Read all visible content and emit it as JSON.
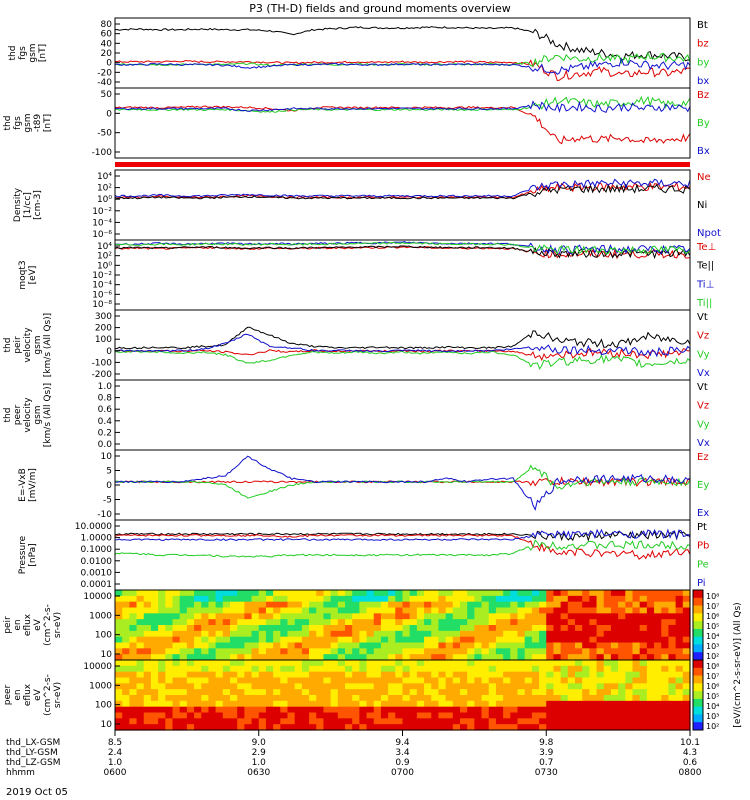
{
  "title": "P3 (TH-D) fields and ground moments overview",
  "date": "2019 Oct 05",
  "colors": {
    "black": "#000000",
    "red": "#dd0000",
    "green": "#22cc22",
    "blue": "#1010cc"
  },
  "chart_data": [
    {
      "type": "line",
      "ylabel": [
        "thd",
        "fgs",
        "gsm",
        "[nT]"
      ],
      "ticks": [
        "80",
        "60",
        "40",
        "20",
        "0",
        "-20",
        "-40"
      ],
      "ylim": [
        -40,
        80
      ],
      "series": [
        {
          "name": "Bt",
          "color": "black",
          "values": [
            60,
            61,
            60,
            60,
            61,
            60,
            60,
            58,
            52,
            60,
            62,
            64,
            63,
            63,
            64,
            64,
            63,
            62,
            63,
            55,
            35,
            25,
            20,
            15,
            18,
            15,
            12
          ]
        },
        {
          "name": "bz",
          "color": "red",
          "values": [
            5,
            5,
            5,
            6,
            5,
            5,
            5,
            4,
            3,
            4,
            4,
            5,
            4,
            5,
            4,
            5,
            5,
            4,
            4,
            0,
            -20,
            -15,
            -10,
            -18,
            -12,
            -15,
            -10
          ]
        },
        {
          "name": "by",
          "color": "green",
          "values": [
            0,
            1,
            0,
            0,
            1,
            0,
            2,
            -1,
            0,
            1,
            0,
            1,
            0,
            1,
            0,
            1,
            0,
            1,
            0,
            5,
            15,
            10,
            12,
            8,
            15,
            12,
            10
          ]
        },
        {
          "name": "bx",
          "color": "blue",
          "values": [
            0,
            0,
            1,
            0,
            0,
            -1,
            -5,
            -3,
            0,
            0,
            1,
            0,
            0,
            1,
            0,
            0,
            1,
            0,
            0,
            -5,
            -10,
            -5,
            0,
            5,
            0,
            -2,
            0
          ]
        }
      ]
    },
    {
      "type": "line",
      "ylabel": [
        "thd",
        "fgs",
        "gsm",
        "-t89",
        "[nT]"
      ],
      "ticks": [
        "50",
        "0",
        "-50",
        "-100"
      ],
      "ylim": [
        -120,
        50
      ],
      "series": [
        {
          "name": "Bz",
          "color": "red",
          "values": [
            2,
            3,
            2,
            3,
            5,
            4,
            3,
            0,
            -5,
            2,
            3,
            2,
            3,
            2,
            3,
            2,
            3,
            2,
            3,
            -20,
            -80,
            -70,
            -75,
            -70,
            -80,
            -75,
            -70
          ]
        },
        {
          "name": "By",
          "color": "green",
          "values": [
            -3,
            -2,
            -3,
            -2,
            -3,
            -2,
            -5,
            -8,
            -3,
            -2,
            -3,
            -2,
            -3,
            -2,
            -3,
            -2,
            -3,
            -2,
            -3,
            5,
            20,
            15,
            10,
            15,
            20,
            10,
            15
          ]
        },
        {
          "name": "Bx",
          "color": "blue",
          "values": [
            0,
            0,
            0,
            0,
            0,
            0,
            -5,
            -3,
            0,
            0,
            0,
            0,
            0,
            0,
            0,
            0,
            0,
            0,
            0,
            10,
            0,
            5,
            0,
            5,
            0,
            5,
            0
          ]
        }
      ]
    },
    {
      "type": "line",
      "ylabel": [
        "Density",
        "[1/cc]",
        "[cm-3]"
      ],
      "ticks": [
        "10⁴",
        "10²",
        "10⁰",
        "10⁻²",
        "10⁻⁴",
        "10⁻⁶"
      ],
      "ylim": [
        -6,
        4
      ],
      "series": [
        {
          "name": "Ne",
          "color": "red",
          "values": [
            0.1,
            0.1,
            0.2,
            0.1,
            0.1,
            0.2,
            0.3,
            0.2,
            0.1,
            0.1,
            0.1,
            0.1,
            0.1,
            0.1,
            0.1,
            0.1,
            0.1,
            0.1,
            0.1,
            1,
            1.5,
            1.5,
            1.6,
            1.6,
            1.6,
            1.6,
            1.6
          ]
        },
        {
          "name": "Ni",
          "color": "black",
          "values": [
            0,
            0,
            0.1,
            0,
            0,
            0.1,
            0.2,
            0.1,
            0,
            0,
            0,
            0,
            0,
            0,
            0,
            0,
            0,
            0,
            0,
            0.8,
            1.2,
            1.3,
            1.3,
            1.3,
            1.3,
            1.3,
            1.3
          ]
        },
        {
          "name": "Npot",
          "color": "blue",
          "values": [
            0.3,
            0.3,
            0.4,
            0.3,
            0.3,
            0.4,
            0.5,
            0.4,
            0.3,
            0.3,
            0.3,
            0.3,
            0.3,
            0.3,
            0.3,
            0.3,
            0.3,
            0.3,
            0.3,
            1.5,
            2,
            2,
            2.1,
            2.1,
            2.1,
            2.1,
            2.1
          ]
        }
      ]
    },
    {
      "type": "line",
      "ylabel": [
        "moqt3",
        "[eV]"
      ],
      "ticks": [
        "10⁴",
        "10²",
        "10⁰",
        "10⁻²",
        "10⁻⁴",
        "10⁻⁶",
        "10⁻⁸"
      ],
      "ylim": [
        -8,
        4
      ],
      "series": [
        {
          "name": "Te⊥",
          "color": "red",
          "values": [
            2.5,
            2.6,
            2.5,
            2.6,
            2.7,
            2.6,
            2.5,
            2.6,
            2.5,
            2.6,
            2.6,
            2.7,
            2.7,
            2.8,
            2.7,
            2.6,
            2.6,
            2.6,
            2.5,
            1.8,
            1.6,
            1.6,
            1.6,
            1.6,
            1.6,
            1.6,
            1.6
          ]
        },
        {
          "name": "Te||",
          "color": "black",
          "values": [
            2.6,
            2.7,
            2.6,
            2.7,
            2.8,
            2.7,
            2.6,
            2.7,
            2.6,
            2.7,
            2.7,
            2.8,
            2.8,
            2.9,
            2.8,
            2.7,
            2.7,
            2.7,
            2.6,
            1.9,
            1.7,
            1.7,
            1.7,
            1.7,
            1.7,
            1.7,
            1.7
          ]
        },
        {
          "name": "Ti⊥",
          "color": "blue",
          "values": [
            3.3,
            3.3,
            3.4,
            3.3,
            3.4,
            3.4,
            3.3,
            3.4,
            3.3,
            3.4,
            3.4,
            3.5,
            3.5,
            3.6,
            3.5,
            3.4,
            3.4,
            3.4,
            3.3,
            2.6,
            2.4,
            2.4,
            2.4,
            2.4,
            2.4,
            2.4,
            2.4
          ]
        },
        {
          "name": "Ti||",
          "color": "green",
          "values": [
            3.2,
            3.2,
            3.3,
            3.2,
            3.3,
            3.3,
            3.2,
            3.3,
            3.2,
            3.3,
            3.3,
            3.4,
            3.4,
            3.5,
            3.4,
            3.3,
            3.3,
            3.3,
            3.2,
            2.5,
            2.3,
            2.3,
            2.3,
            2.3,
            2.3,
            2.3,
            2.3
          ]
        }
      ]
    },
    {
      "type": "line",
      "ylabel": [
        "thd",
        "peir",
        "velocity",
        "gsm",
        "[km/s (All Qs)]"
      ],
      "ticks": [
        "300",
        "200",
        "100",
        "0",
        "-100",
        "-200"
      ],
      "ylim": [
        -200,
        300
      ],
      "series": [
        {
          "name": "Vt",
          "color": "black",
          "values": [
            30,
            30,
            35,
            30,
            40,
            50,
            180,
            120,
            60,
            40,
            30,
            30,
            35,
            30,
            30,
            35,
            30,
            30,
            40,
            150,
            80,
            70,
            60,
            60,
            110,
            90,
            80
          ]
        },
        {
          "name": "Vz",
          "color": "red",
          "values": [
            10,
            5,
            10,
            5,
            10,
            0,
            -20,
            10,
            0,
            10,
            5,
            10,
            5,
            10,
            5,
            10,
            5,
            10,
            5,
            -30,
            -20,
            -10,
            0,
            -10,
            -20,
            -10,
            0
          ]
        },
        {
          "name": "Vy",
          "color": "green",
          "values": [
            0,
            5,
            0,
            -10,
            0,
            -20,
            -80,
            -60,
            -20,
            0,
            -10,
            0,
            -10,
            0,
            -10,
            0,
            -10,
            0,
            -20,
            -100,
            -70,
            -60,
            -50,
            -60,
            -90,
            -70,
            -60
          ]
        },
        {
          "name": "Vx",
          "color": "blue",
          "values": [
            10,
            10,
            5,
            10,
            20,
            60,
            130,
            40,
            30,
            10,
            10,
            10,
            5,
            10,
            10,
            5,
            10,
            10,
            20,
            40,
            20,
            15,
            10,
            20,
            -10,
            5,
            10
          ]
        }
      ]
    },
    {
      "type": "line",
      "ylabel": [
        "thd",
        "peer",
        "velocity",
        "gsm",
        "[km/s (All Qs)]"
      ],
      "ticks": [
        "1.0",
        "0.8",
        "0.6",
        "0.4",
        "0.2",
        "0.0"
      ],
      "ylim": [
        0,
        1
      ],
      "series": [
        {
          "name": "Vt",
          "color": "black",
          "values": []
        },
        {
          "name": "Vz",
          "color": "red",
          "values": []
        },
        {
          "name": "Vy",
          "color": "green",
          "values": []
        },
        {
          "name": "Vx",
          "color": "blue",
          "values": []
        }
      ]
    },
    {
      "type": "line",
      "ylabel": [
        "E=-VxB",
        "[mV/m]"
      ],
      "ticks": [
        "10",
        "5",
        "0",
        "-5",
        "-10"
      ],
      "ylim": [
        -12,
        10
      ],
      "series": [
        {
          "name": "Ez",
          "color": "red",
          "values": [
            0,
            0,
            0,
            0,
            0,
            0,
            0,
            0,
            0,
            0,
            0,
            0,
            0,
            0,
            0,
            0,
            0,
            0,
            0,
            0,
            0,
            0,
            0,
            0,
            0,
            0,
            0
          ]
        },
        {
          "name": "Ey",
          "color": "green",
          "values": [
            0,
            0,
            0,
            0,
            0,
            -1,
            -5,
            -3,
            -1,
            0,
            0,
            0,
            0,
            0,
            0,
            0,
            0,
            0,
            0,
            5,
            -2,
            0,
            0,
            0,
            0,
            0,
            0
          ]
        },
        {
          "name": "Ex",
          "color": "blue",
          "values": [
            0,
            0,
            0,
            0,
            1,
            2,
            8,
            4,
            1,
            0,
            0,
            0,
            0,
            0,
            0,
            1,
            0,
            1,
            1,
            -8,
            0,
            1,
            1,
            1,
            1,
            1,
            0
          ]
        }
      ]
    },
    {
      "type": "line",
      "ylabel": [
        "Pressure",
        "[nPa]"
      ],
      "ticks": [
        "10.0000",
        "1.0000",
        "0.1000",
        "0.0100",
        "0.0010",
        "0.0001"
      ],
      "ylim": [
        -4,
        1
      ],
      "series": [
        {
          "name": "Pt",
          "color": "black",
          "values": [
            0,
            0,
            0,
            0,
            0,
            0,
            0,
            0,
            0,
            0,
            0,
            0,
            0,
            0,
            0,
            0,
            0,
            0,
            0,
            -0.1,
            -0.2,
            -0.2,
            -0.1,
            -0.1,
            -0.1,
            -0.1,
            -0.1
          ]
        },
        {
          "name": "Pb",
          "color": "red",
          "values": [
            -0.1,
            -0.1,
            -0.1,
            -0.1,
            -0.1,
            -0.1,
            -0.1,
            -0.1,
            -0.2,
            -0.1,
            -0.1,
            -0.1,
            -0.1,
            -0.1,
            -0.1,
            -0.1,
            -0.1,
            -0.1,
            -0.1,
            -0.8,
            -1.4,
            -1.2,
            -1.5,
            -1.3,
            -1.6,
            -1.3,
            -1.2
          ]
        },
        {
          "name": "Pe",
          "color": "green",
          "values": [
            -1.4,
            -1.4,
            -1.5,
            -1.5,
            -1.5,
            -1.6,
            -1.6,
            -1.6,
            -1.5,
            -1.5,
            -1.5,
            -1.5,
            -1.5,
            -1.5,
            -1.5,
            -1.5,
            -1.5,
            -1.5,
            -1.4,
            -0.7,
            -0.8,
            -0.8,
            -0.8,
            -0.8,
            -0.8,
            -0.8,
            -0.8
          ]
        },
        {
          "name": "Pi",
          "color": "blue",
          "values": [
            -0.4,
            -0.4,
            -0.4,
            -0.4,
            -0.4,
            -0.4,
            -0.4,
            -0.4,
            -0.4,
            -0.4,
            -0.4,
            -0.4,
            -0.4,
            -0.4,
            -0.4,
            -0.4,
            -0.4,
            -0.4,
            -0.4,
            -0.1,
            0,
            0,
            0,
            0,
            0,
            0,
            0
          ]
        }
      ]
    },
    {
      "type": "heatmap",
      "ylabel": [
        "thd",
        "peir",
        "en",
        "eflux",
        "eV",
        "(cm^2-s-",
        "sr-eV)"
      ],
      "ticks": [
        "10000",
        "1000",
        "100",
        "10"
      ]
    },
    {
      "type": "heatmap",
      "ylabel": [
        "thd",
        "peer",
        "en",
        "eflux",
        "eV",
        "(cm^2-s-",
        "sr-eV)"
      ],
      "ticks": [
        "10000",
        "1000",
        "100",
        "10"
      ]
    }
  ],
  "colorbar": {
    "label": "[eV/(cm^2-s-sr-eV)] (All Qs)",
    "ticks": [
      "10⁸",
      "10⁷",
      "10⁶",
      "10⁵",
      "10⁴",
      "10³",
      "10²"
    ]
  },
  "x_axis": {
    "rows": [
      {
        "label": "thd_LX-GSM",
        "values": [
          "8.5",
          "9.0",
          "9.4",
          "9.8",
          "10.1"
        ]
      },
      {
        "label": "thd_LY-GSM",
        "values": [
          "2.4",
          "2.9",
          "3.4",
          "3.9",
          "4.3"
        ]
      },
      {
        "label": "thd_LZ-GSM",
        "values": [
          "1.0",
          "1.0",
          "0.9",
          "0.7",
          "0.6"
        ]
      },
      {
        "label": "hhmm",
        "values": [
          "0600",
          "0630",
          "0700",
          "0730",
          "0800"
        ]
      }
    ]
  }
}
